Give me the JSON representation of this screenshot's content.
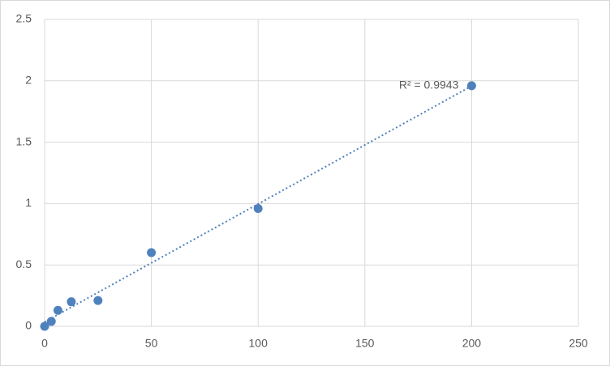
{
  "chart_data": {
    "type": "scatter",
    "x": [
      0,
      3.125,
      6.25,
      12.5,
      25,
      50,
      100,
      200
    ],
    "values": [
      0,
      0.04,
      0.13,
      0.2,
      0.21,
      0.6,
      0.96,
      1.96
    ],
    "color": "#4f81bd",
    "xlim": [
      0,
      250
    ],
    "xticks": [
      0,
      50,
      100,
      150,
      200,
      250
    ],
    "ylim": [
      0,
      2.5
    ],
    "yticks": [
      0,
      0.5,
      1,
      1.5,
      2,
      2.5
    ],
    "grid": true,
    "trendline": "linear",
    "annotation": "R² = 0.9943"
  }
}
